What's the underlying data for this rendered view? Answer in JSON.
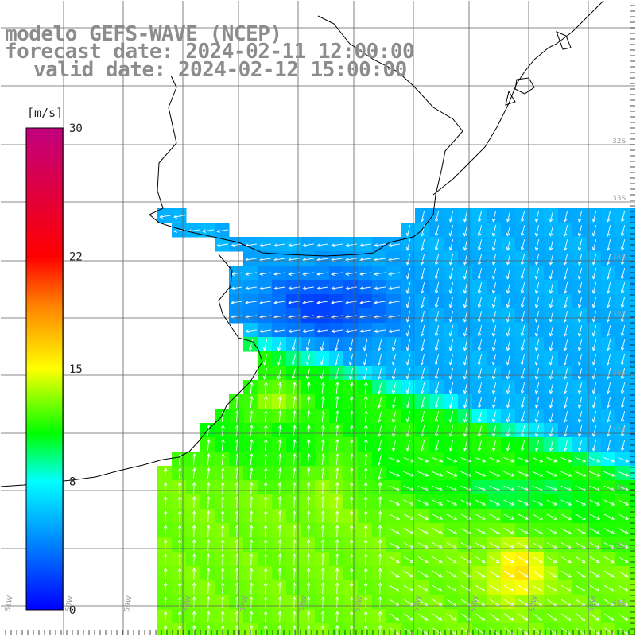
{
  "title": {
    "line1": "modelo GEFS-WAVE (NCEP)",
    "line2": "forecast date: 2024-02-11 12:00:00",
    "line3": "valid date: 2024-02-12 15:00:00"
  },
  "colorbar": {
    "unit": "[m/s]",
    "min": 0,
    "max": 30,
    "ticks": [
      {
        "value": 30,
        "label": "30"
      },
      {
        "value": 22,
        "label": "22"
      },
      {
        "value": 15,
        "label": "15"
      },
      {
        "value": 8,
        "label": "8"
      },
      {
        "value": 0,
        "label": "0"
      }
    ],
    "stops": [
      {
        "v": 0,
        "color": "#0000ff"
      },
      {
        "v": 8,
        "color": "#00ffff"
      },
      {
        "v": 11,
        "color": "#00ff00"
      },
      {
        "v": 15,
        "color": "#ffff00"
      },
      {
        "v": 19,
        "color": "#ff8000"
      },
      {
        "v": 22,
        "color": "#ff0000"
      },
      {
        "v": 30,
        "color": "#c0007f"
      }
    ]
  },
  "map": {
    "lat_labels": [
      "32S",
      "33S",
      "34S",
      "35S",
      "36S",
      "37S",
      "38S",
      "39S",
      "40S",
      "41S"
    ],
    "lon_labels": [
      "61W",
      "60W",
      "59W",
      "58W",
      "57W",
      "56W",
      "55W",
      "54W",
      "53W",
      "52W",
      "51W"
    ],
    "colors": {
      "land": "#ffffff",
      "grid": "#606060",
      "coast": "#000000",
      "arrow": "#ffffff",
      "label": "#9a9a9a"
    }
  }
}
